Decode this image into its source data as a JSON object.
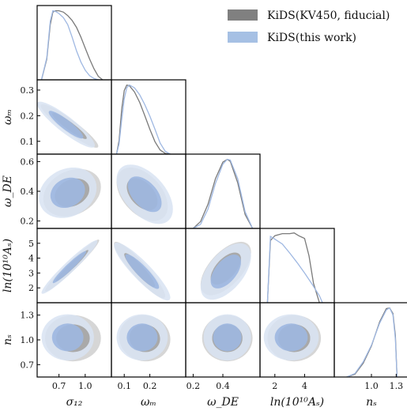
{
  "chart_data": {
    "type": "corner",
    "legend": [
      {
        "label": "KiDS(KV450, fiducial)",
        "color": "#808080"
      },
      {
        "label": "KiDS(this work)",
        "color": "#a6c0e4"
      }
    ],
    "colors": {
      "fiducial_outer": "#d6d6d6",
      "fiducial_inner": "#a9a9a9",
      "fiducial_line": "#7a7a7a",
      "thiswork_outer": "#d8e3f2",
      "thiswork_inner": "#9db7e0",
      "thiswork_line": "#9fb8e2"
    },
    "parameters": [
      {
        "name": "σ12",
        "label": "σ₁₂",
        "range": [
          0.45,
          1.3
        ],
        "ticks": [
          0.7,
          1.0
        ],
        "tick_labels": [
          "0.7",
          "1.0"
        ]
      },
      {
        "name": "ωm",
        "label": "ωₘ",
        "range": [
          0.05,
          0.34
        ],
        "ticks": [
          0.1,
          0.2,
          0.3
        ],
        "tick_labels": [
          "0.1",
          "0.2",
          "0.3"
        ]
      },
      {
        "name": "ωDE",
        "label": "ω_DE",
        "range": [
          0.15,
          0.65
        ],
        "ticks": [
          0.2,
          0.4,
          0.6
        ],
        "tick_labels": [
          "0.2",
          "0.4",
          "0.6"
        ]
      },
      {
        "name": "ln(10^10 As)",
        "label": "ln(10¹⁰Aₛ)",
        "range": [
          1.0,
          6.0
        ],
        "ticks": [
          2,
          3,
          4,
          5
        ],
        "tick_labels": [
          "2",
          "3",
          "4",
          "5"
        ]
      },
      {
        "name": "ns",
        "label": "nₛ",
        "range": [
          0.55,
          1.45
        ],
        "ticks": [
          0.7,
          1.0,
          1.3
        ],
        "tick_labels": [
          "0.7",
          "1.0",
          "1.3"
        ]
      }
    ],
    "row_tick_labels": {
      "ωm": [
        "0.1",
        "0.2",
        "0.3"
      ],
      "ωDE": [
        "0.2",
        "0.4",
        "0.6"
      ],
      "ln(10^10 As)": [
        "2",
        "3",
        "4",
        "5"
      ],
      "ns": [
        "0.7",
        "1.0",
        "1.3"
      ]
    },
    "bottom_tick_labels": {
      "σ12": [
        "0.7",
        "1.0"
      ],
      "ωm": [
        "0.1",
        "0.2"
      ],
      "ωDE": [
        "0.2",
        "0.4"
      ],
      "ln(10^10 As)": [
        "2",
        "4"
      ],
      "ns": [
        "1.0",
        "1.3"
      ]
    },
    "marginals": [
      {
        "param": "σ12",
        "fiducial": {
          "x": [
            0.5,
            0.56,
            0.6,
            0.63,
            0.66,
            0.7,
            0.75,
            0.8,
            0.85,
            0.9,
            0.95,
            1.0,
            1.05,
            1.1,
            1.15,
            1.2
          ],
          "y": [
            0.0,
            0.3,
            0.8,
            0.98,
            1.0,
            1.0,
            0.98,
            0.93,
            0.86,
            0.76,
            0.62,
            0.46,
            0.3,
            0.16,
            0.05,
            0.0
          ]
        },
        "thiswork": {
          "x": [
            0.5,
            0.56,
            0.6,
            0.63,
            0.66,
            0.7,
            0.75,
            0.8,
            0.85,
            0.9,
            0.95,
            1.0,
            1.05,
            1.1,
            1.15,
            1.2
          ],
          "y": [
            0.0,
            0.32,
            0.85,
            1.0,
            0.99,
            0.96,
            0.9,
            0.8,
            0.62,
            0.42,
            0.26,
            0.14,
            0.06,
            0.02,
            0.0,
            0.0
          ]
        }
      },
      {
        "param": "ωm",
        "fiducial": {
          "x": [
            0.07,
            0.08,
            0.09,
            0.1,
            0.11,
            0.12,
            0.14,
            0.16,
            0.18,
            0.2,
            0.22,
            0.24,
            0.26,
            0.28
          ],
          "y": [
            0.0,
            0.2,
            0.65,
            0.92,
            1.0,
            0.99,
            0.9,
            0.75,
            0.56,
            0.36,
            0.18,
            0.06,
            0.01,
            0.0
          ]
        },
        "thiswork": {
          "x": [
            0.07,
            0.08,
            0.09,
            0.1,
            0.11,
            0.12,
            0.14,
            0.16,
            0.18,
            0.2,
            0.22,
            0.24,
            0.26,
            0.28
          ],
          "y": [
            0.0,
            0.15,
            0.5,
            0.8,
            0.96,
            1.0,
            0.96,
            0.86,
            0.72,
            0.55,
            0.36,
            0.16,
            0.04,
            0.0
          ]
        }
      },
      {
        "param": "ωDE",
        "fiducial": {
          "x": [
            0.2,
            0.25,
            0.3,
            0.35,
            0.4,
            0.43,
            0.45,
            0.5,
            0.55,
            0.6
          ],
          "y": [
            0.0,
            0.1,
            0.35,
            0.72,
            0.96,
            1.0,
            0.97,
            0.66,
            0.2,
            0.0
          ]
        },
        "thiswork": {
          "x": [
            0.2,
            0.25,
            0.3,
            0.35,
            0.4,
            0.43,
            0.45,
            0.5,
            0.55,
            0.6
          ],
          "y": [
            0.0,
            0.06,
            0.28,
            0.65,
            0.93,
            1.0,
            0.99,
            0.72,
            0.24,
            0.0
          ]
        }
      },
      {
        "param": "ln(10^10 As)",
        "fiducial": {
          "x": [
            1.5,
            1.7,
            2.0,
            2.5,
            3.0,
            3.3,
            3.6,
            4.0,
            4.3,
            4.6,
            5.0
          ],
          "y": [
            0.0,
            0.9,
            0.97,
            1.0,
            1.0,
            1.01,
            0.97,
            0.93,
            0.68,
            0.28,
            0.0
          ]
        },
        "thiswork": {
          "x": [
            1.5,
            1.7,
            2.0,
            2.5,
            3.0,
            3.5,
            4.0,
            4.5,
            5.0,
            5.2
          ],
          "y": [
            0.0,
            0.96,
            0.92,
            0.85,
            0.72,
            0.58,
            0.43,
            0.27,
            0.1,
            0.0
          ]
        }
      },
      {
        "param": "ns",
        "fiducial": {
          "x": [
            0.7,
            0.8,
            0.9,
            1.0,
            1.1,
            1.18,
            1.22,
            1.26,
            1.29,
            1.31
          ],
          "y": [
            0.0,
            0.04,
            0.2,
            0.45,
            0.8,
            0.99,
            1.0,
            0.92,
            0.6,
            0.0
          ]
        },
        "thiswork": {
          "x": [
            0.7,
            0.8,
            0.9,
            1.0,
            1.1,
            1.18,
            1.22,
            1.26,
            1.29,
            1.31
          ],
          "y": [
            0.0,
            0.05,
            0.22,
            0.46,
            0.78,
            0.97,
            1.0,
            0.9,
            0.55,
            0.0
          ]
        }
      }
    ]
  }
}
